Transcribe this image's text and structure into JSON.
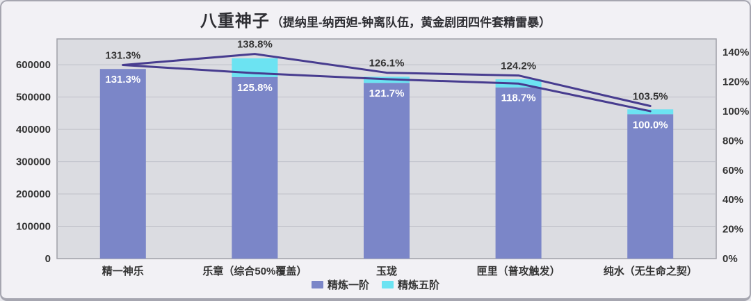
{
  "title": {
    "main": "八重神子",
    "subtitle": "（提纳里-纳西妲-钟离队伍，黄金剧团四件套精雷暴）"
  },
  "chart_data": {
    "type": "bar",
    "subtype": "stacked-bar-with-line-overlay-dual-axis",
    "categories": [
      "精一神乐",
      "乐章（综合50%覆盖）",
      "玉珑",
      "匣里（普攻触发）",
      "纯水（无生命之契）"
    ],
    "series": [
      {
        "name": "精炼一阶",
        "type": "bar",
        "color": "#7b86c8",
        "pct": [
          131.3,
          125.8,
          121.7,
          118.7,
          100.0
        ],
        "est_values_left_axis": [
          587000,
          562000,
          544000,
          530000,
          447000
        ]
      },
      {
        "name": "精炼五阶",
        "type": "bar",
        "stacked_on": "精炼一阶",
        "color": "#6ce3f2",
        "pct": [
          131.3,
          138.8,
          126.1,
          124.2,
          103.5
        ],
        "est_values_left_axis": [
          587000,
          620000,
          563000,
          555000,
          462000
        ]
      }
    ],
    "lines": [
      {
        "id": "r1-trend-line",
        "axis": "right",
        "color": "#473c8f",
        "values_pct": [
          131.3,
          125.8,
          121.7,
          118.7,
          100.0
        ]
      },
      {
        "id": "r5-trend-line",
        "axis": "right",
        "color": "#473c8f",
        "values_pct": [
          131.3,
          138.8,
          126.1,
          124.2,
          103.5
        ]
      }
    ],
    "data_labels": {
      "above_bars_pct": [
        131.3,
        138.8,
        126.1,
        124.2,
        103.5
      ],
      "inside_bars_pct": [
        131.3,
        125.8,
        121.7,
        118.7,
        100.0
      ]
    },
    "left_axis": {
      "ticks": [
        0,
        100000,
        200000,
        300000,
        400000,
        500000,
        600000
      ],
      "max": 680000
    },
    "right_axis": {
      "ticks_pct": [
        0,
        20,
        40,
        60,
        80,
        100,
        120,
        140
      ],
      "max_pct": 149
    },
    "grid": true,
    "legend": {
      "position": "bottom",
      "items": [
        {
          "label": "精炼一阶",
          "color": "#7b86c8"
        },
        {
          "label": "精炼五阶",
          "color": "#6ce3f2"
        }
      ]
    }
  },
  "colors": {
    "bar_r1": "#7b86c8",
    "bar_r5": "#6ce3f2",
    "trend_line": "#473c8f",
    "plot_background": "#dbdce1",
    "gridline": "#bfc0c8",
    "plot_border": "#9fa0a8",
    "card_background": "#f2f1f5",
    "axis_text": "#333333",
    "label_above": "#333333",
    "label_inside": "#ffffff"
  }
}
